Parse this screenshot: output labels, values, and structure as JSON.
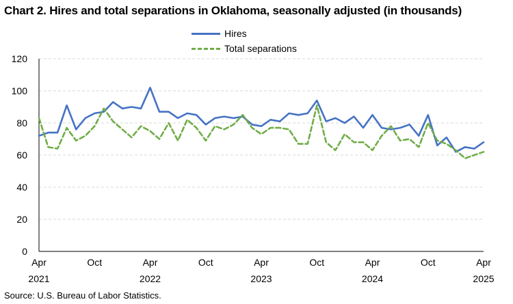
{
  "title": "Chart 2. Hires and total separations in Oklahoma, seasonally adjusted (in thousands)",
  "source": "Source: U.S. Bureau of Labor Statistics.",
  "colors": {
    "hires": "#4472C4",
    "separations": "#70AD47",
    "grid": "#d9d9d9",
    "axis": "#000000"
  },
  "chart_data": {
    "type": "line",
    "title": "Chart 2. Hires and total separations in Oklahoma, seasonally adjusted (in thousands)",
    "xlabel": "",
    "ylabel": "",
    "ylim": [
      0,
      120
    ],
    "yticks": [
      0,
      20,
      40,
      60,
      80,
      100,
      120
    ],
    "grid": true,
    "legend": "top-center",
    "x": [
      "Apr 2021",
      "May 2021",
      "Jun 2021",
      "Jul 2021",
      "Aug 2021",
      "Sep 2021",
      "Oct 2021",
      "Nov 2021",
      "Dec 2021",
      "Jan 2022",
      "Feb 2022",
      "Mar 2022",
      "Apr 2022",
      "May 2022",
      "Jun 2022",
      "Jul 2022",
      "Aug 2022",
      "Sep 2022",
      "Oct 2022",
      "Nov 2022",
      "Dec 2022",
      "Jan 2023",
      "Feb 2023",
      "Mar 2023",
      "Apr 2023",
      "May 2023",
      "Jun 2023",
      "Jul 2023",
      "Aug 2023",
      "Sep 2023",
      "Oct 2023",
      "Nov 2023",
      "Dec 2023",
      "Jan 2024",
      "Feb 2024",
      "Mar 2024",
      "Apr 2024",
      "May 2024",
      "Jun 2024",
      "Jul 2024",
      "Aug 2024",
      "Sep 2024",
      "Oct 2024",
      "Nov 2024",
      "Dec 2024",
      "Jan 2025",
      "Feb 2025",
      "Mar 2025",
      "Apr 2025"
    ],
    "xtick_labels": [
      {
        "index": 0,
        "month": "Apr",
        "year": "2021"
      },
      {
        "index": 6,
        "month": "Oct",
        "year": ""
      },
      {
        "index": 12,
        "month": "Apr",
        "year": "2022"
      },
      {
        "index": 18,
        "month": "Oct",
        "year": ""
      },
      {
        "index": 24,
        "month": "Apr",
        "year": "2023"
      },
      {
        "index": 30,
        "month": "Oct",
        "year": ""
      },
      {
        "index": 36,
        "month": "Apr",
        "year": "2024"
      },
      {
        "index": 42,
        "month": "Oct",
        "year": ""
      },
      {
        "index": 48,
        "month": "Apr",
        "year": "2025"
      }
    ],
    "series": [
      {
        "name": "Hires",
        "values": [
          72,
          74,
          74,
          91,
          76,
          83,
          86,
          87,
          93,
          89,
          90,
          89,
          102,
          87,
          87,
          83,
          86,
          85,
          79,
          83,
          84,
          83,
          84,
          79,
          78,
          82,
          81,
          86,
          85,
          86,
          94,
          81,
          83,
          80,
          84,
          77,
          85,
          77,
          76,
          77,
          79,
          72,
          85,
          66,
          71,
          62,
          65,
          64,
          68
        ]
      },
      {
        "name": "Total separations",
        "values": [
          83,
          65,
          64,
          77,
          69,
          72,
          78,
          89,
          81,
          76,
          71,
          78,
          75,
          70,
          80,
          69,
          82,
          77,
          69,
          78,
          76,
          79,
          85,
          77,
          73,
          77,
          77,
          76,
          67,
          67,
          91,
          68,
          63,
          73,
          68,
          68,
          63,
          72,
          78,
          69,
          70,
          65,
          80,
          69,
          67,
          63,
          58,
          60,
          62
        ]
      }
    ]
  }
}
